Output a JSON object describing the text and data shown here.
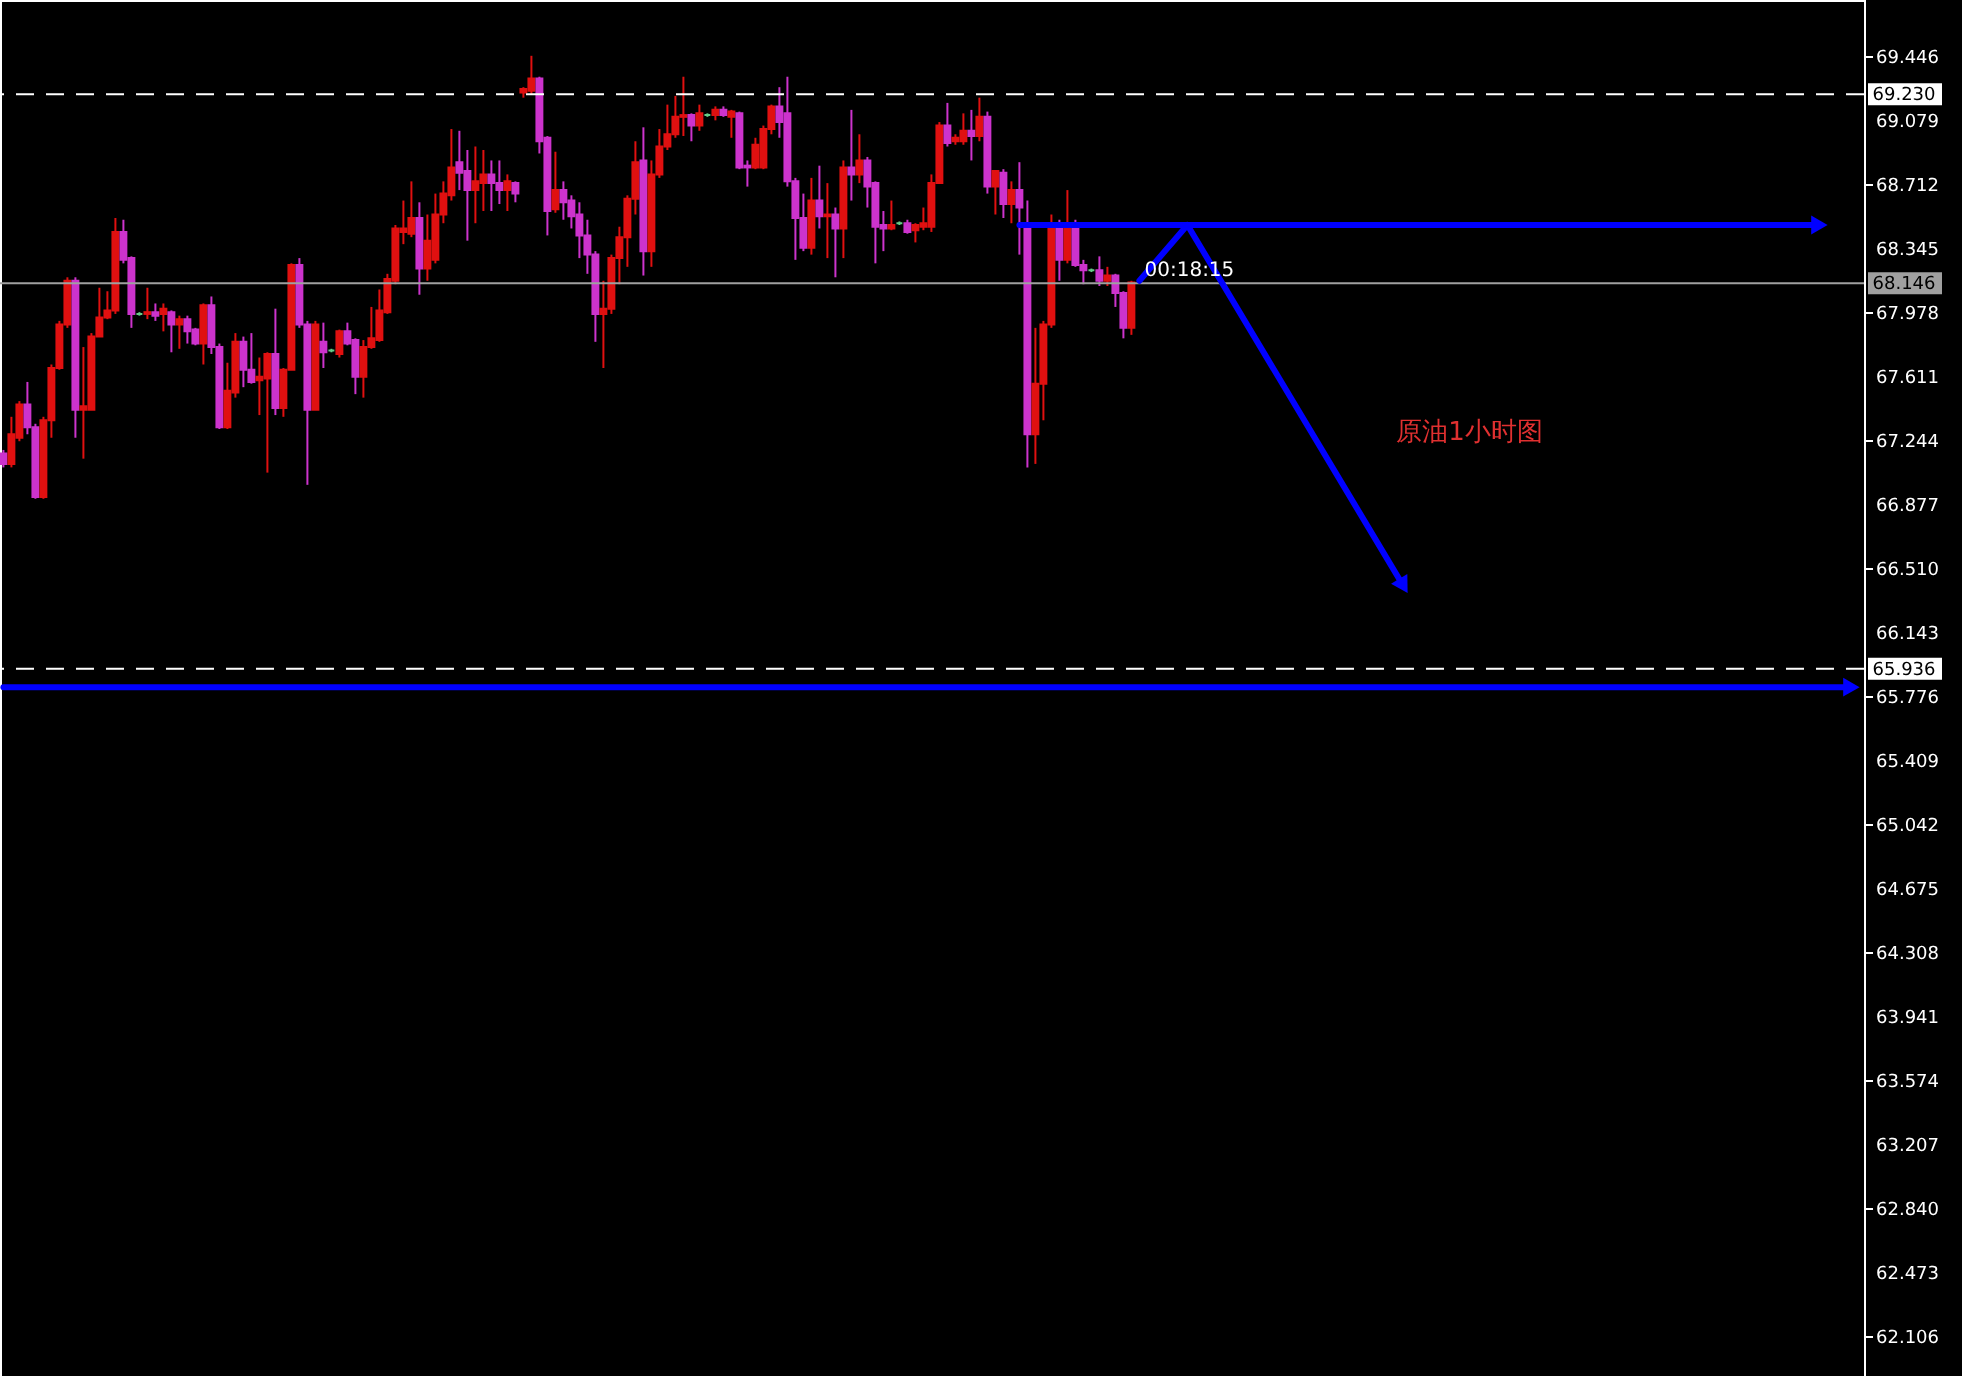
{
  "chart_data": {
    "type": "candlestick",
    "categories": [
      null,
      null,
      null,
      null,
      null,
      null,
      null,
      null,
      null,
      null,
      null,
      null,
      null,
      null,
      null,
      null,
      null,
      null,
      null,
      null,
      null,
      null,
      null,
      null,
      null,
      null,
      null,
      null,
      null,
      null,
      null,
      null,
      null,
      null,
      null,
      null,
      null,
      null,
      null,
      null,
      null,
      null,
      null,
      null,
      null,
      null,
      null,
      null,
      null,
      null,
      null,
      null,
      null,
      null,
      null,
      null,
      null,
      null,
      null,
      null,
      null,
      null,
      null,
      null,
      null,
      null,
      null,
      null,
      null,
      null,
      null,
      null,
      null,
      null,
      null,
      null,
      null,
      null,
      null,
      null,
      null,
      null,
      null,
      null,
      null,
      null,
      null,
      null,
      null,
      null,
      null,
      null,
      null,
      null,
      null,
      null,
      null,
      null,
      null,
      null,
      null,
      null,
      null,
      null,
      null,
      null,
      null,
      null,
      null,
      null,
      null,
      null,
      null,
      null,
      null,
      null,
      null,
      null,
      null,
      null,
      null,
      null,
      null,
      null,
      null,
      null,
      null,
      null,
      null,
      null,
      null,
      null,
      null,
      null,
      null,
      null,
      null,
      null,
      null,
      null,
      null,
      null,
      null,
      null,
      null,
      null,
      null,
      null,
      null,
      null,
      null,
      null,
      null,
      null,
      null,
      null,
      null,
      null,
      null,
      null,
      null,
      null,
      null,
      null,
      null,
      null,
      null,
      null,
      null,
      null,
      null,
      null,
      null,
      null,
      null,
      null,
      null,
      null,
      null,
      null,
      null,
      null,
      null,
      null,
      null,
      null,
      null,
      null,
      null,
      null,
      null,
      null,
      null,
      null,
      null,
      null,
      null,
      null,
      null,
      null,
      null,
      null,
      null,
      null,
      null,
      null,
      null,
      null,
      null,
      null,
      null,
      null,
      null,
      null,
      null,
      null,
      null,
      null,
      null,
      null,
      null,
      null,
      null,
      null,
      null,
      null,
      null,
      null,
      null,
      null,
      null,
      null,
      null
    ],
    "ohlc": [
      [
        67.17,
        67.19,
        67.09,
        67.11
      ],
      [
        67.11,
        67.38,
        67.09,
        67.28
      ],
      [
        67.26,
        67.47,
        67.24,
        67.45
      ],
      [
        67.45,
        67.58,
        67.28,
        67.32
      ],
      [
        67.32,
        67.34,
        66.91,
        66.92
      ],
      [
        66.92,
        67.38,
        66.91,
        67.36
      ],
      [
        67.36,
        67.68,
        67.26,
        67.66
      ],
      [
        67.66,
        67.93,
        67.65,
        67.91
      ],
      [
        67.91,
        68.18,
        67.89,
        68.16
      ],
      [
        68.16,
        68.18,
        67.26,
        67.42
      ],
      [
        67.42,
        67.78,
        67.14,
        67.44
      ],
      [
        67.42,
        67.86,
        67.42,
        67.84
      ],
      [
        67.84,
        68.12,
        67.84,
        67.95
      ],
      [
        67.95,
        68.1,
        67.94,
        67.99
      ],
      [
        67.99,
        68.52,
        67.97,
        68.44
      ],
      [
        68.44,
        68.51,
        68.26,
        68.28
      ],
      [
        68.29,
        68.3,
        67.89,
        67.97
      ],
      [
        67.97,
        67.98,
        67.96,
        67.97
      ],
      [
        67.97,
        68.12,
        67.94,
        67.98
      ],
      [
        67.98,
        68.03,
        67.93,
        67.96
      ],
      [
        67.97,
        68.03,
        67.87,
        68.0
      ],
      [
        67.98,
        67.99,
        67.75,
        67.91
      ],
      [
        67.91,
        67.96,
        67.77,
        67.94
      ],
      [
        67.94,
        67.96,
        67.8,
        67.87
      ],
      [
        67.88,
        67.89,
        67.79,
        67.8
      ],
      [
        67.8,
        68.03,
        67.68,
        68.02
      ],
      [
        68.02,
        68.07,
        67.74,
        67.78
      ],
      [
        67.78,
        67.8,
        67.31,
        67.32
      ],
      [
        67.32,
        67.69,
        67.31,
        67.53
      ],
      [
        67.52,
        67.86,
        67.49,
        67.81
      ],
      [
        67.81,
        67.84,
        67.55,
        67.65
      ],
      [
        67.65,
        67.86,
        67.57,
        67.58
      ],
      [
        67.59,
        67.72,
        67.39,
        67.61
      ],
      [
        67.6,
        67.75,
        67.06,
        67.74
      ],
      [
        67.74,
        68.0,
        67.39,
        67.43
      ],
      [
        67.43,
        67.66,
        67.38,
        67.65
      ],
      [
        67.65,
        68.26,
        67.65,
        68.25
      ],
      [
        68.25,
        68.29,
        67.89,
        67.91
      ],
      [
        67.91,
        67.93,
        66.99,
        67.42
      ],
      [
        67.42,
        67.93,
        67.42,
        67.91
      ],
      [
        67.81,
        67.92,
        67.66,
        67.75
      ],
      [
        67.76,
        67.77,
        67.75,
        67.76
      ],
      [
        67.74,
        67.88,
        67.72,
        67.87
      ],
      [
        67.87,
        67.92,
        67.79,
        67.8
      ],
      [
        67.82,
        67.83,
        67.51,
        67.61
      ],
      [
        67.61,
        67.82,
        67.49,
        67.78
      ],
      [
        67.78,
        68.01,
        67.77,
        67.83
      ],
      [
        67.82,
        68.11,
        67.81,
        67.99
      ],
      [
        67.98,
        68.2,
        67.97,
        68.17
      ],
      [
        68.16,
        68.48,
        68.14,
        68.46
      ],
      [
        68.44,
        68.62,
        68.37,
        68.46
      ],
      [
        68.43,
        68.73,
        68.41,
        68.52
      ],
      [
        68.52,
        68.61,
        68.08,
        68.23
      ],
      [
        68.23,
        68.54,
        68.16,
        68.39
      ],
      [
        68.28,
        68.66,
        68.26,
        68.54
      ],
      [
        68.54,
        68.73,
        68.49,
        68.66
      ],
      [
        68.65,
        69.03,
        68.62,
        68.81
      ],
      [
        68.84,
        69.02,
        68.68,
        68.78
      ],
      [
        68.79,
        68.91,
        68.39,
        68.68
      ],
      [
        68.68,
        68.93,
        68.49,
        68.73
      ],
      [
        68.72,
        68.91,
        68.56,
        68.77
      ],
      [
        68.77,
        68.85,
        68.56,
        68.72
      ],
      [
        68.72,
        68.85,
        68.6,
        68.68
      ],
      [
        68.68,
        68.77,
        68.56,
        68.73
      ],
      [
        68.72,
        68.73,
        68.61,
        68.66
      ],
      [
        69.24,
        69.27,
        69.21,
        69.26
      ],
      [
        69.25,
        69.45,
        69.23,
        69.32
      ],
      [
        69.32,
        69.33,
        68.89,
        68.96
      ],
      [
        68.98,
        68.99,
        68.42,
        68.56
      ],
      [
        68.57,
        68.9,
        68.55,
        68.68
      ],
      [
        68.68,
        68.73,
        68.51,
        68.61
      ],
      [
        68.62,
        68.65,
        68.46,
        68.53
      ],
      [
        68.54,
        68.61,
        68.29,
        68.42
      ],
      [
        68.42,
        68.51,
        68.2,
        68.31
      ],
      [
        68.31,
        68.33,
        67.81,
        67.97
      ],
      [
        67.97,
        68.16,
        67.66,
        68.0
      ],
      [
        68.0,
        68.31,
        67.97,
        68.29
      ],
      [
        68.29,
        68.47,
        68.14,
        68.41
      ],
      [
        68.41,
        68.65,
        68.24,
        68.63
      ],
      [
        68.63,
        68.96,
        68.54,
        68.84
      ],
      [
        68.85,
        69.04,
        68.19,
        68.33
      ],
      [
        68.33,
        68.85,
        68.24,
        68.77
      ],
      [
        68.77,
        69.03,
        68.75,
        68.93
      ],
      [
        68.93,
        69.17,
        68.91,
        69.0
      ],
      [
        69.0,
        69.22,
        68.98,
        69.1
      ],
      [
        69.1,
        69.33,
        68.99,
        69.11
      ],
      [
        69.11,
        69.12,
        68.96,
        69.05
      ],
      [
        69.05,
        69.17,
        69.02,
        69.12
      ],
      [
        69.11,
        69.12,
        69.1,
        69.11
      ],
      [
        69.11,
        69.16,
        69.08,
        69.14
      ],
      [
        69.14,
        69.16,
        69.1,
        69.11
      ],
      [
        69.1,
        69.14,
        68.98,
        69.13
      ],
      [
        69.12,
        69.13,
        68.8,
        68.81
      ],
      [
        68.82,
        68.85,
        68.7,
        68.81
      ],
      [
        68.81,
        68.98,
        68.8,
        68.94
      ],
      [
        68.81,
        69.05,
        68.8,
        69.03
      ],
      [
        69.03,
        69.17,
        69.0,
        69.16
      ],
      [
        69.16,
        69.27,
        68.98,
        69.07
      ],
      [
        69.12,
        69.33,
        68.7,
        68.73
      ],
      [
        68.73,
        68.75,
        68.28,
        68.52
      ],
      [
        68.52,
        68.66,
        68.33,
        68.35
      ],
      [
        68.35,
        68.75,
        68.31,
        68.62
      ],
      [
        68.62,
        68.82,
        68.46,
        68.53
      ],
      [
        68.53,
        68.72,
        68.29,
        68.54
      ],
      [
        68.54,
        68.58,
        68.18,
        68.46
      ],
      [
        68.46,
        68.85,
        68.29,
        68.81
      ],
      [
        68.81,
        69.14,
        68.62,
        68.77
      ],
      [
        68.77,
        69.0,
        68.72,
        68.85
      ],
      [
        68.85,
        68.87,
        68.58,
        68.7
      ],
      [
        68.72,
        68.73,
        68.26,
        68.47
      ],
      [
        68.48,
        68.56,
        68.33,
        68.46
      ],
      [
        68.46,
        68.62,
        68.45,
        68.48
      ],
      [
        68.49,
        68.5,
        68.48,
        68.49
      ],
      [
        68.49,
        68.51,
        68.43,
        68.44
      ],
      [
        68.45,
        68.49,
        68.38,
        68.48
      ],
      [
        68.47,
        68.58,
        68.45,
        68.49
      ],
      [
        68.47,
        68.77,
        68.44,
        68.72
      ],
      [
        68.72,
        69.07,
        68.72,
        69.05
      ],
      [
        69.05,
        69.18,
        68.93,
        68.95
      ],
      [
        68.96,
        69.0,
        68.94,
        68.98
      ],
      [
        68.96,
        69.12,
        68.94,
        69.02
      ],
      [
        69.02,
        69.14,
        68.85,
        68.99
      ],
      [
        68.99,
        69.21,
        68.96,
        69.1
      ],
      [
        69.1,
        69.13,
        68.66,
        68.7
      ],
      [
        68.7,
        68.79,
        68.54,
        68.79
      ],
      [
        68.78,
        68.8,
        68.52,
        68.6
      ],
      [
        68.6,
        68.73,
        68.49,
        68.68
      ],
      [
        68.68,
        68.84,
        68.31,
        68.58
      ],
      [
        68.48,
        68.62,
        67.09,
        67.28
      ],
      [
        67.28,
        67.89,
        67.11,
        67.57
      ],
      [
        67.57,
        67.93,
        67.36,
        67.91
      ],
      [
        67.91,
        68.54,
        67.89,
        68.49
      ],
      [
        68.49,
        68.51,
        68.16,
        68.28
      ],
      [
        68.28,
        68.68,
        68.26,
        68.49
      ],
      [
        68.49,
        68.51,
        68.24,
        68.25
      ],
      [
        68.25,
        68.28,
        68.14,
        68.22
      ],
      [
        68.22,
        68.23,
        68.21,
        68.22
      ],
      [
        68.22,
        68.3,
        68.13,
        68.16
      ],
      [
        68.16,
        68.24,
        68.13,
        68.19
      ],
      [
        68.19,
        68.2,
        68.01,
        68.09
      ],
      [
        68.09,
        68.1,
        67.83,
        67.89
      ],
      [
        67.89,
        68.16,
        67.85,
        68.15
      ],
      null,
      null,
      null,
      null,
      null,
      null,
      null,
      null,
      null,
      null,
      null,
      null,
      null,
      null,
      null,
      null,
      null,
      null,
      null,
      null,
      null,
      null,
      null,
      null,
      null,
      null,
      null,
      null,
      null,
      null,
      null,
      null,
      null,
      null,
      null,
      null,
      null,
      null,
      null,
      null,
      null,
      null,
      null,
      null,
      null,
      null,
      null,
      null,
      null,
      null,
      null,
      null,
      null,
      null,
      null,
      null,
      null,
      null,
      null,
      null,
      null,
      null,
      null,
      null,
      null,
      null,
      null,
      null,
      null,
      null,
      null,
      null,
      null,
      null,
      null,
      null,
      null,
      null,
      null,
      null,
      null,
      null,
      null,
      null,
      null,
      null,
      null,
      null,
      null,
      null,
      null
    ],
    "colors": [
      "#cc33cc",
      "#e01010",
      "#e01010",
      "#cc33cc",
      "#cc33cc",
      "#e01010",
      "#e01010",
      "#e01010",
      "#e01010",
      "#cc33cc",
      "#e01010",
      "#e01010",
      "#e01010",
      "#e01010",
      "#e01010",
      "#cc33cc",
      "#cc33cc",
      "#66cc88",
      "#e01010",
      "#cc33cc",
      "#e01010",
      "#cc33cc",
      "#e01010",
      "#cc33cc",
      "#cc33cc",
      "#e01010",
      "#cc33cc",
      "#cc33cc",
      "#e01010",
      "#e01010",
      "#cc33cc",
      "#cc33cc",
      "#e01010",
      "#e01010",
      "#cc33cc",
      "#e01010",
      "#e01010",
      "#cc33cc",
      "#cc33cc",
      "#e01010",
      "#cc33cc",
      "#66cc88",
      "#e01010",
      "#cc33cc",
      "#cc33cc",
      "#e01010",
      "#e01010",
      "#e01010",
      "#e01010",
      "#e01010",
      "#e01010",
      "#e01010",
      "#cc33cc",
      "#e01010",
      "#e01010",
      "#e01010",
      "#e01010",
      "#cc33cc",
      "#cc33cc",
      "#e01010",
      "#e01010",
      "#cc33cc",
      "#cc33cc",
      "#e01010",
      "#cc33cc",
      "#e01010",
      "#e01010",
      "#cc33cc",
      "#cc33cc",
      "#e01010",
      "#cc33cc",
      "#cc33cc",
      "#cc33cc",
      "#cc33cc",
      "#cc33cc",
      "#e01010",
      "#e01010",
      "#e01010",
      "#e01010",
      "#e01010",
      "#cc33cc",
      "#e01010",
      "#e01010",
      "#e01010",
      "#e01010",
      "#e01010",
      "#cc33cc",
      "#e01010",
      "#66cc88",
      "#e01010",
      "#cc33cc",
      "#e01010",
      "#cc33cc",
      "#cc33cc",
      "#e01010",
      "#e01010",
      "#e01010",
      "#cc33cc",
      "#cc33cc",
      "#cc33cc",
      "#cc33cc",
      "#e01010",
      "#cc33cc",
      "#e01010",
      "#cc33cc",
      "#e01010",
      "#cc33cc",
      "#e01010",
      "#cc33cc",
      "#cc33cc",
      "#cc33cc",
      "#e01010",
      "#66cc88",
      "#cc33cc",
      "#e01010",
      "#e01010",
      "#e01010",
      "#e01010",
      "#cc33cc",
      "#e01010",
      "#e01010",
      "#cc33cc",
      "#e01010",
      "#cc33cc",
      "#e01010",
      "#cc33cc",
      "#e01010",
      "#cc33cc",
      "#cc33cc",
      "#e01010",
      "#e01010",
      "#e01010",
      "#cc33cc",
      "#e01010",
      "#cc33cc",
      "#cc33cc",
      "#66cc88",
      "#cc33cc",
      "#e01010",
      "#cc33cc",
      "#cc33cc",
      "#e01010",
      null,
      null,
      null,
      null,
      null,
      null,
      null,
      null,
      null,
      null,
      null,
      null,
      null,
      null,
      null,
      null,
      null,
      null,
      null,
      null,
      null,
      null,
      null,
      null,
      null,
      null,
      null,
      null,
      null,
      null,
      null,
      null,
      null,
      null,
      null,
      null,
      null,
      null,
      null,
      null,
      null,
      null,
      null,
      null,
      null,
      null,
      null,
      null,
      null,
      null,
      null,
      null,
      null,
      null,
      null,
      null,
      null,
      null,
      null,
      null,
      null,
      null,
      null,
      null,
      null,
      null,
      null,
      null,
      null,
      null,
      null,
      null,
      null,
      null,
      null,
      null,
      null,
      null,
      null,
      null,
      null,
      null,
      null,
      null,
      null,
      null,
      null,
      null,
      null,
      null,
      null
    ],
    "series": [
      {
        "type": "line",
        "color": "#0000ff",
        "values": [
          null,
          null,
          null,
          null,
          null,
          null,
          null,
          null,
          null,
          null,
          null,
          null,
          null,
          null,
          null,
          null,
          null,
          null,
          null,
          null,
          null,
          null,
          null,
          null,
          null,
          null,
          null,
          null,
          null,
          null,
          null,
          null,
          null,
          null,
          null,
          null,
          null,
          null,
          null,
          null,
          null,
          null,
          null,
          null,
          null,
          null,
          null,
          null,
          null,
          null,
          null,
          null,
          null,
          null,
          null,
          null,
          null,
          null,
          null,
          null,
          null,
          null,
          null,
          null,
          null,
          null,
          null,
          null,
          null,
          null,
          null,
          null,
          null,
          null,
          null,
          null,
          null,
          null,
          null,
          null,
          null,
          null,
          null,
          null,
          null,
          null,
          null,
          null,
          null,
          null,
          null,
          null,
          null,
          null,
          null,
          null,
          null,
          null,
          null,
          null,
          null,
          null,
          null,
          null,
          null,
          null,
          null,
          null,
          null,
          null,
          null,
          null,
          null,
          null,
          null,
          null,
          null,
          null,
          null,
          null,
          null,
          null,
          null,
          null,
          null,
          null,
          null,
          68.48,
          null,
          null,
          null,
          null,
          null,
          null,
          null,
          null,
          null,
          null,
          null,
          null,
          null,
          null,
          null,
          null,
          null,
          null,
          null,
          null,
          null,
          null,
          null,
          null,
          null,
          null,
          null,
          null,
          null,
          null,
          null,
          null,
          null,
          null,
          null,
          null,
          null,
          null,
          null,
          null,
          null,
          null,
          null,
          null,
          null,
          null,
          null,
          null,
          null,
          null,
          null,
          null,
          null,
          null,
          null,
          null,
          null,
          null,
          null,
          null,
          null,
          null,
          null,
          null,
          null,
          null,
          null,
          null,
          null,
          null,
          null,
          null,
          null,
          null,
          null,
          null,
          null,
          null,
          null,
          null,
          null,
          null,
          null,
          null,
          null,
          null,
          null,
          null,
          null,
          null,
          null,
          null,
          null,
          null,
          null,
          null,
          null,
          null,
          null,
          68.48,
          null,
          null,
          null,
          null,
          null
        ]
      },
      {
        "type": "line",
        "color": "#0000ff",
        "values": [
          null,
          null,
          null,
          null,
          null,
          null,
          null,
          null,
          null,
          null,
          null,
          null,
          null,
          null,
          null,
          null,
          null,
          null,
          null,
          null,
          null,
          null,
          null,
          null,
          null,
          null,
          null,
          null,
          null,
          null,
          null,
          null,
          null,
          null,
          null,
          null,
          null,
          null,
          null,
          null,
          null,
          null,
          null,
          null,
          null,
          null,
          null,
          null,
          null,
          null,
          null,
          null,
          null,
          null,
          null,
          null,
          null,
          null,
          null,
          null,
          null,
          null,
          null,
          null,
          null,
          null,
          null,
          null,
          null,
          null,
          null,
          null,
          null,
          null,
          null,
          null,
          null,
          null,
          null,
          null,
          null,
          null,
          null,
          null,
          null,
          null,
          null,
          null,
          null,
          null,
          null,
          null,
          null,
          null,
          null,
          null,
          null,
          null,
          null,
          null,
          null,
          null,
          null,
          null,
          null,
          null,
          null,
          null,
          null,
          null,
          null,
          null,
          null,
          null,
          null,
          null,
          null,
          null,
          null,
          null,
          null,
          null,
          null,
          null,
          null,
          null,
          null,
          null,
          null,
          null,
          null,
          null,
          null,
          null,
          null,
          null,
          null,
          null,
          null,
          null,
          null,
          null,
          68.16,
          null,
          null,
          null,
          null,
          null,
          68.48,
          null,
          null,
          null,
          null,
          null,
          null,
          null,
          null,
          null,
          null,
          null,
          null,
          null,
          null,
          null,
          null,
          null,
          null,
          null,
          null,
          null,
          null,
          null,
          null,
          null,
          null,
          66.41,
          null,
          null,
          null,
          null,
          null,
          null,
          null,
          null,
          null,
          null,
          null,
          null,
          null,
          null,
          null,
          null,
          null,
          null,
          null,
          null,
          null,
          null,
          null,
          null,
          null,
          null,
          null,
          null,
          null,
          null,
          null,
          null,
          null,
          null,
          null,
          null,
          null,
          null,
          null,
          null,
          null,
          null,
          null,
          null,
          null,
          null,
          null,
          null,
          null,
          null,
          null,
          null,
          null,
          null,
          null,
          null,
          null
        ]
      },
      {
        "type": "line",
        "color": "#0000ff",
        "values": [
          65.83,
          null,
          null,
          null,
          null,
          null,
          null,
          null,
          null,
          null,
          null,
          null,
          null,
          null,
          null,
          null,
          null,
          null,
          null,
          null,
          null,
          null,
          null,
          null,
          null,
          null,
          null,
          null,
          null,
          null,
          null,
          null,
          null,
          null,
          null,
          null,
          null,
          null,
          null,
          null,
          null,
          null,
          null,
          null,
          null,
          null,
          null,
          null,
          null,
          null,
          null,
          null,
          null,
          null,
          null,
          null,
          null,
          null,
          null,
          null,
          null,
          null,
          null,
          null,
          null,
          null,
          null,
          null,
          null,
          null,
          null,
          null,
          null,
          null,
          null,
          null,
          null,
          null,
          null,
          null,
          null,
          null,
          null,
          null,
          null,
          null,
          null,
          null,
          null,
          null,
          null,
          null,
          null,
          null,
          null,
          null,
          null,
          null,
          null,
          null,
          null,
          null,
          null,
          null,
          null,
          null,
          null,
          null,
          null,
          null,
          null,
          null,
          null,
          null,
          null,
          null,
          null,
          null,
          null,
          null,
          null,
          null,
          null,
          null,
          null,
          null,
          null,
          null,
          null,
          null,
          null,
          null,
          null,
          null,
          null,
          null,
          null,
          null,
          null,
          null,
          null,
          null,
          null,
          null,
          null,
          null,
          null,
          null,
          null,
          null,
          null,
          null,
          null,
          null,
          null,
          null,
          null,
          null,
          null,
          null,
          null,
          null,
          null,
          null,
          null,
          null,
          null,
          null,
          null,
          null,
          null,
          null,
          null,
          null,
          null,
          null,
          null,
          null,
          null,
          null,
          null,
          null,
          null,
          null,
          null,
          null,
          null,
          null,
          null,
          null,
          null,
          null,
          null,
          null,
          null,
          null,
          null,
          null,
          null,
          null,
          null,
          null,
          null,
          null,
          null,
          null,
          null,
          null,
          null,
          null,
          null,
          null,
          null,
          null,
          null,
          null,
          null,
          null,
          null,
          null,
          null,
          null,
          null,
          null,
          null,
          null,
          null,
          null,
          null,
          null,
          null,
          65.83,
          null
        ]
      }
    ],
    "ref_lines": [
      {
        "axis": "y",
        "value": 69.23,
        "label": "69.230",
        "color": "#ffffff",
        "line_style": "dashed"
      },
      {
        "axis": "y",
        "value": 65.936,
        "label": "65.936",
        "color": "#ffffff",
        "line_style": "dashed"
      },
      {
        "axis": "y",
        "value": 68.146,
        "label": "68.146",
        "color": "#a0a0a0",
        "line_style": "solid"
      }
    ],
    "annotations": [
      "00:18:15",
      "原油1小时图"
    ],
    "ylim": [
      61.88,
      69.77
    ],
    "yticks": [
      69.446,
      69.079,
      68.712,
      68.345,
      67.978,
      67.611,
      67.244,
      66.877,
      {
        "value": 66.51,
        "label": "66.510"
      },
      66.143,
      65.776,
      65.409,
      65.042,
      64.675,
      64.308,
      63.941,
      63.574,
      63.207,
      {
        "value": 62.84,
        "label": "62.840"
      },
      62.473,
      62.106
    ],
    "tick_labels": "y"
  }
}
